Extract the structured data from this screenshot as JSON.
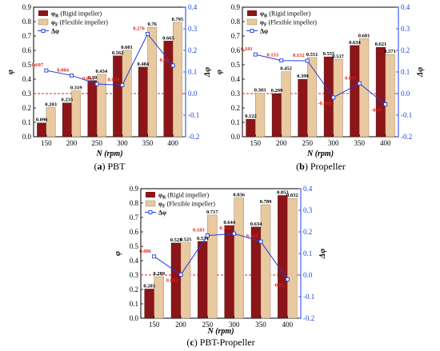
{
  "colors": {
    "rigid": "#8b1518",
    "flexible": "#e8c9a0",
    "delta": "#1f3fe0",
    "delta_label": "#e0201a",
    "refline": "#e0201a"
  },
  "legend": {
    "rigid": "φR (Rigid impeller)",
    "flexible": "φF (Flexible impeller)",
    "delta": "Δφ"
  },
  "chart_data": [
    {
      "type": "bar",
      "caption": "(a) PBT",
      "xlabel": "N (rpm)",
      "ylabel": "φ",
      "y2label": "Δφ",
      "categories": [
        "150",
        "200",
        "250",
        "300",
        "350",
        "400"
      ],
      "ylim": [
        0,
        0.9
      ],
      "y2lim": [
        -0.2,
        0.4
      ],
      "yticks": [
        "0.0",
        "0.1",
        "0.2",
        "0.3",
        "0.4",
        "0.5",
        "0.6",
        "0.7",
        "0.8",
        "0.9"
      ],
      "y2ticks": [
        "-0.2",
        "-0.1",
        "0.0",
        "0.1",
        "0.2",
        "0.3",
        "0.4"
      ],
      "series": [
        {
          "name": "φR (Rigid impeller)",
          "values": [
            0.096,
            0.235,
            0.39,
            0.562,
            0.484,
            0.665
          ],
          "labels": [
            "0.096",
            "0.235",
            "0.39",
            "0.562",
            "0.484",
            "0.665"
          ]
        },
        {
          "name": "φF (Flexible impeller)",
          "values": [
            0.203,
            0.319,
            0.434,
            0.601,
            0.76,
            0.795
          ],
          "labels": [
            "0.203",
            "0.319",
            "0.434",
            "0.601",
            "0.76",
            "0.795"
          ]
        },
        {
          "name": "Δφ",
          "axis": "right",
          "values": [
            0.107,
            0.084,
            0.044,
            0.039,
            0.276,
            0.13
          ],
          "labels": [
            "0.107",
            "0.084",
            "0.044",
            "0.039",
            "0.276",
            "0.13"
          ]
        }
      ],
      "reference_line": {
        "y2": 0
      }
    },
    {
      "type": "bar",
      "caption": "(b) Propeller",
      "xlabel": "N (rpm)",
      "ylabel": "φ",
      "y2label": "Δφ",
      "categories": [
        "150",
        "200",
        "250",
        "300",
        "350",
        "400"
      ],
      "ylim": [
        0,
        0.9
      ],
      "y2lim": [
        -0.2,
        0.4
      ],
      "yticks": [
        "0.0",
        "0.1",
        "0.2",
        "0.3",
        "0.4",
        "0.5",
        "0.6",
        "0.7",
        "0.8",
        "0.9"
      ],
      "y2ticks": [
        "-0.2",
        "-0.1",
        "0.0",
        "0.1",
        "0.2",
        "0.3",
        "0.4"
      ],
      "series": [
        {
          "name": "φR (Rigid impeller)",
          "values": [
            0.122,
            0.299,
            0.399,
            0.555,
            0.634,
            0.621
          ],
          "labels": [
            "0.122",
            "0.299",
            "0.399",
            "0.555",
            "0.634",
            "0.621"
          ]
        },
        {
          "name": "φF (Flexible impeller)",
          "values": [
            0.303,
            0.452,
            0.551,
            0.537,
            0.681,
            0.571
          ],
          "labels": [
            "0.303",
            "0.452",
            "0.551",
            "0.537",
            "0.681",
            "0.571"
          ]
        },
        {
          "name": "Δφ",
          "axis": "right",
          "values": [
            0.181,
            0.153,
            0.152,
            -0.018,
            0.047,
            -0.05
          ],
          "labels": [
            "0.181",
            "0.153",
            "0.152",
            "-0.018",
            "0.047",
            "-0.05"
          ]
        }
      ],
      "reference_line": {
        "y2": 0
      }
    },
    {
      "type": "bar",
      "caption": "(c) PBT-Propeller",
      "xlabel": "N (rpm)",
      "ylabel": "φ",
      "y2label": "Δφ",
      "categories": [
        "150",
        "200",
        "250",
        "300",
        "350",
        "400"
      ],
      "ylim": [
        0,
        0.9
      ],
      "y2lim": [
        -0.2,
        0.4
      ],
      "yticks": [
        "0.0",
        "0.1",
        "0.2",
        "0.3",
        "0.4",
        "0.5",
        "0.6",
        "0.7",
        "0.8",
        "0.9"
      ],
      "y2ticks": [
        "-0.2",
        "-0.1",
        "0.0",
        "0.1",
        "0.2",
        "0.3",
        "0.4"
      ],
      "series": [
        {
          "name": "φR (Rigid impeller)",
          "values": [
            0.203,
            0.523,
            0.534,
            0.644,
            0.634,
            0.853
          ],
          "labels": [
            "0.203",
            "0.523",
            "0.534",
            "0.644",
            "0.634",
            "0.853"
          ]
        },
        {
          "name": "φF (Flexible impeller)",
          "values": [
            0.289,
            0.525,
            0.717,
            0.836,
            0.789,
            0.832
          ],
          "labels": [
            "0.289",
            "0.525",
            "0.717",
            "0.836",
            "0.789",
            "0.832"
          ]
        },
        {
          "name": "Δφ",
          "axis": "right",
          "values": [
            0.086,
            0.002,
            0.183,
            0.192,
            0.155,
            -0.02
          ],
          "labels": [
            "0.086",
            "0.002",
            "0.183",
            "0.192",
            "0.155",
            "-0.02"
          ]
        }
      ],
      "reference_line": {
        "y2": 0
      }
    }
  ]
}
